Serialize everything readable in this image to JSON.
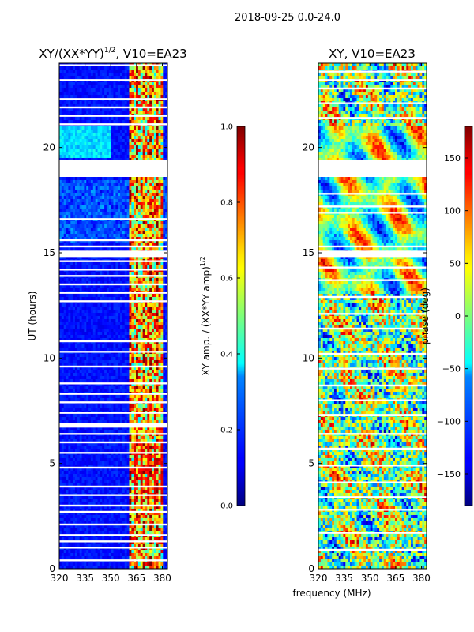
{
  "figure": {
    "suptitle": "2018-09-25 0.0-24.0",
    "shared_xlabel": "frequency (MHz)"
  },
  "chart_data": [
    {
      "type": "heatmap",
      "id": "amp",
      "title_main": "XY/(XX*YY)",
      "title_sup": "1/2",
      "title_tail": ", V10=EA23",
      "ylabel": "UT (hours)",
      "xlim": [
        320,
        383
      ],
      "ylim": [
        0,
        24
      ],
      "xticks": [
        320,
        335,
        350,
        365,
        380
      ],
      "yticks": [
        0,
        5,
        10,
        15,
        20
      ],
      "colormap": "jet",
      "background_value": 0.1,
      "active_band_mhz": [
        361,
        380
      ],
      "band_value_range": [
        0.35,
        0.95
      ],
      "blank_time_ranges_h": [
        [
          18.6,
          19.4
        ],
        [
          14.8,
          15.1
        ],
        [
          6.7,
          6.9
        ]
      ],
      "flag_line_times_h": [
        23.9,
        23.2,
        22.3,
        21.9,
        21.5,
        21.1,
        16.6,
        15.6,
        15.3,
        14.6,
        14.2,
        13.9,
        13.5,
        13.1,
        12.7,
        10.8,
        10.3,
        9.6,
        8.8,
        8.3,
        7.9,
        7.4,
        6.4,
        6.0,
        5.5,
        4.8,
        3.9,
        3.5,
        3.0,
        2.7,
        2.1,
        1.6,
        1.3,
        1.0,
        0.4
      ],
      "colorbar": {
        "label_main": "XY amp. / (XX*YY amp)",
        "label_sup": "1/2",
        "range": [
          0,
          1
        ],
        "ticks": [
          "0.0",
          "0.2",
          "0.4",
          "0.6",
          "0.8",
          "1.0"
        ]
      }
    },
    {
      "type": "heatmap",
      "id": "phase",
      "title": "XY, V10=EA23",
      "xlim": [
        320,
        383
      ],
      "ylim": [
        0,
        24
      ],
      "xticks": [
        320,
        335,
        350,
        365,
        380
      ],
      "yticks": [
        0,
        5,
        10,
        15,
        20
      ],
      "colormap": "jet",
      "value_range": [
        -180,
        180
      ],
      "blank_time_ranges_h": [
        [
          18.6,
          19.4
        ],
        [
          14.8,
          15.1
        ]
      ],
      "flag_line_times_h": [
        23.6,
        23.2,
        22.8,
        22.1,
        21.4,
        17.8,
        17.2,
        16.9,
        15.3,
        14.3,
        13.7,
        12.9,
        12.1,
        11.4,
        10.2,
        9.5,
        8.7,
        8.0,
        7.3,
        6.4,
        5.7,
        4.9,
        4.1,
        3.4,
        2.8,
        1.7,
        0.9
      ],
      "colorbar": {
        "label": "phase (deg)",
        "range": [
          -180,
          180
        ],
        "ticks": [
          "150",
          "100",
          "50",
          "0",
          "−50",
          "−100",
          "−150"
        ],
        "tick_values": [
          150,
          100,
          50,
          0,
          -50,
          -100,
          -150
        ]
      }
    }
  ]
}
